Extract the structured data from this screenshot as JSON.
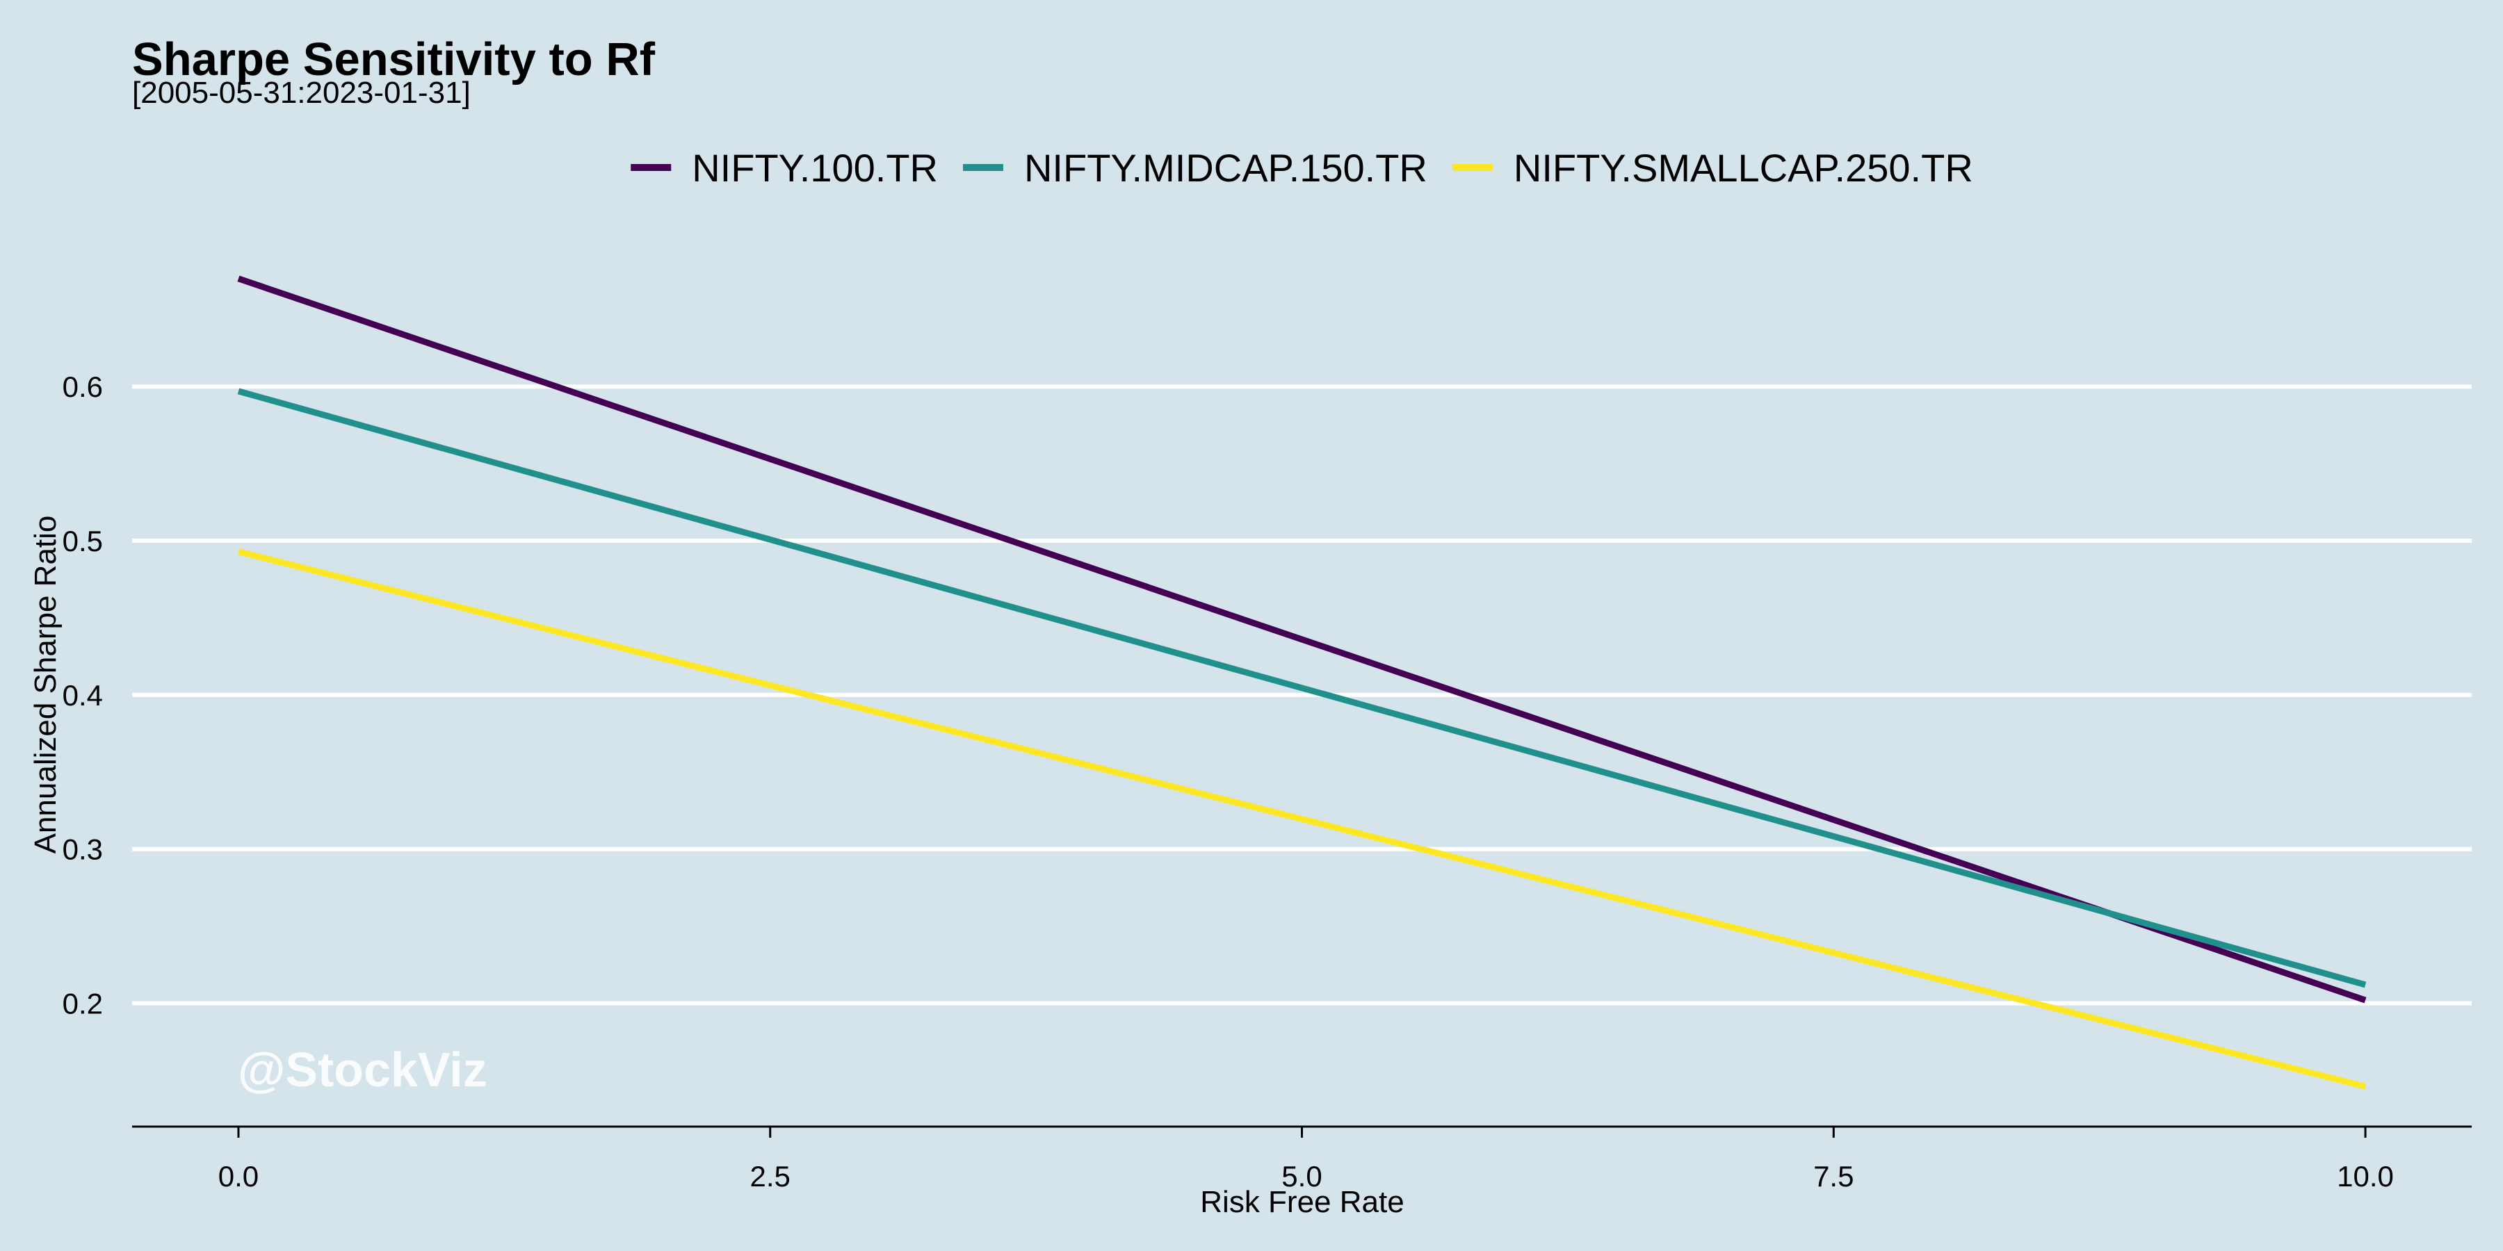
{
  "chart_data": {
    "type": "line",
    "title": "Sharpe Sensitivity to Rf",
    "subtitle": "[2005-05-31:2023-01-31]",
    "xlabel": "Risk Free Rate",
    "ylabel": "Annualized Sharpe Ratio",
    "xlim": [
      -0.5,
      10.5
    ],
    "ylim": [
      0.12,
      0.72
    ],
    "x_ticks": [
      0,
      2.5,
      5,
      7.5,
      10
    ],
    "x_tick_labels": [
      "0.0",
      "2.5",
      "5.0",
      "7.5",
      "10.0"
    ],
    "y_ticks": [
      0.2,
      0.3,
      0.4,
      0.5,
      0.6
    ],
    "y_tick_labels": [
      "0.2",
      "0.3",
      "0.4",
      "0.5",
      "0.6"
    ],
    "grid": "horizontal",
    "legend_position": "top",
    "watermark": "@StockViz",
    "series": [
      {
        "name": "NIFTY.100.TR",
        "color": "#440154",
        "x": [
          0,
          10
        ],
        "y": [
          0.67,
          0.202
        ]
      },
      {
        "name": "NIFTY.MIDCAP.150.TR",
        "color": "#21908c",
        "x": [
          0,
          10
        ],
        "y": [
          0.597,
          0.212
        ]
      },
      {
        "name": "NIFTY.SMALLCAP.250.TR",
        "color": "#fde725",
        "x": [
          0,
          10
        ],
        "y": [
          0.493,
          0.146
        ]
      }
    ]
  }
}
